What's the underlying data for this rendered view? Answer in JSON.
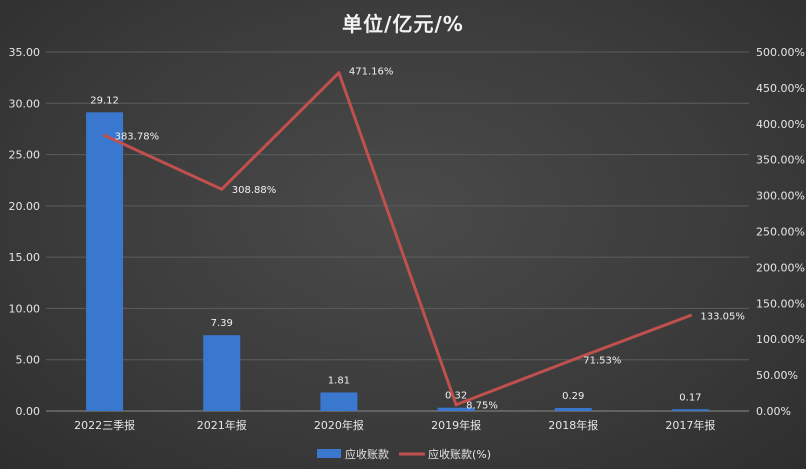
{
  "chart_data": {
    "type": "bar",
    "title": "单位/亿元/%",
    "categories": [
      "2022三季报",
      "2021年报",
      "2020年报",
      "2019年报",
      "2018年报",
      "2017年报"
    ],
    "series": [
      {
        "name": "应收账款",
        "type": "bar",
        "axis": "left",
        "color": "#3a78d0",
        "values": [
          29.12,
          7.39,
          1.81,
          0.32,
          0.29,
          0.17
        ],
        "labels": [
          "29.12",
          "7.39",
          "1.81",
          "0.32",
          "0.29",
          "0.17"
        ]
      },
      {
        "name": "应收账款(%)",
        "type": "line",
        "axis": "right",
        "color": "#c0504d",
        "values": [
          383.78,
          308.88,
          471.16,
          8.75,
          71.53,
          133.05
        ],
        "labels": [
          "383.78%",
          "308.88%",
          "471.16%",
          "8.75%",
          "71.53%",
          "133.05%"
        ]
      }
    ],
    "left_axis": {
      "min": 0,
      "max": 35,
      "ticks": [
        "0.00",
        "5.00",
        "10.00",
        "15.00",
        "20.00",
        "25.00",
        "30.00",
        "35.00"
      ]
    },
    "right_axis": {
      "min": 0,
      "max": 500,
      "ticks": [
        "0.00%",
        "50.00%",
        "100.00%",
        "150.00%",
        "200.00%",
        "250.00%",
        "300.00%",
        "350.00%",
        "400.00%",
        "450.00%",
        "500.00%"
      ]
    },
    "grid": true,
    "legend_position": "bottom"
  }
}
